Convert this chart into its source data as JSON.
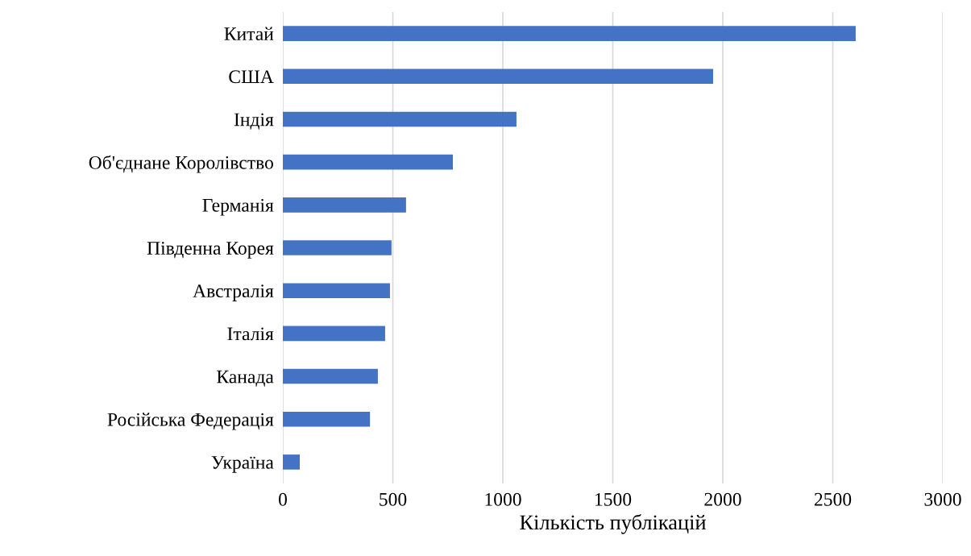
{
  "chart_data": {
    "type": "bar",
    "orientation": "horizontal",
    "xlabel": "Кількість публікацій",
    "categories": [
      "Китай",
      "США",
      "Індія",
      "Об'єднане Королівство",
      "Германія",
      "Південна Корея",
      "Австралія",
      "Італія",
      "Канада",
      "Російська Федерація",
      "Україна"
    ],
    "values": [
      2604,
      1956,
      1062,
      773,
      560,
      494,
      487,
      465,
      432,
      396,
      77
    ],
    "color": "#4472c4",
    "xlim": [
      0,
      3000
    ],
    "xticks": [
      0,
      500,
      1000,
      1500,
      2000,
      2500,
      3000
    ],
    "grid": "x"
  }
}
